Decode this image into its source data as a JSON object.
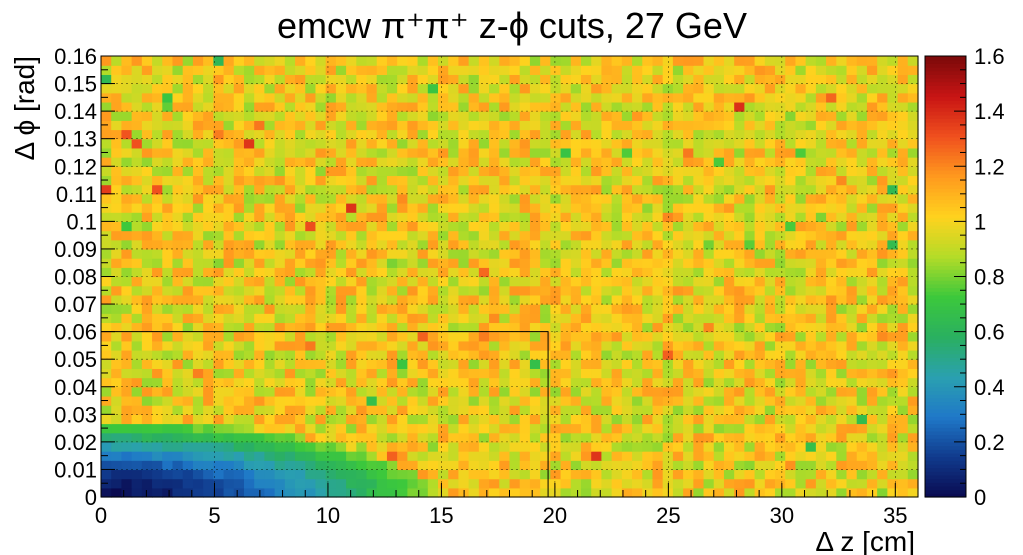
{
  "chart_data": {
    "type": "heatmap",
    "title": "emcw π⁺π⁺  z-ϕ cuts, 27 GeV",
    "xlabel": "Δ z [cm]",
    "ylabel": "Δ ϕ [rad]",
    "xlim": [
      0,
      36
    ],
    "ylim": [
      0,
      0.16
    ],
    "x_ticks": [
      0,
      5,
      10,
      15,
      20,
      25,
      30,
      35
    ],
    "y_ticks": [
      0,
      0.01,
      0.02,
      0.03,
      0.04,
      0.05,
      0.06,
      0.07,
      0.08,
      0.09,
      0.1,
      0.11,
      0.12,
      0.13,
      0.14,
      0.15,
      0.16
    ],
    "z_range": [
      0,
      1.6
    ],
    "z_ticks": [
      0,
      0.2,
      0.4,
      0.6,
      0.8,
      1,
      1.2,
      1.4,
      1.6
    ],
    "grid": true,
    "colorscale": [
      "#0a0a50",
      "#103a8c",
      "#1f78c8",
      "#2aa0b0",
      "#2ab060",
      "#3cc83c",
      "#b4dc28",
      "#ffd21e",
      "#ff9a1e",
      "#f0501e",
      "#c81414",
      "#7a0a0a"
    ],
    "cut_region": {
      "dz_max": 19.7,
      "dphi_max": 0.06
    },
    "bins": {
      "nx": 80,
      "ny": 48
    },
    "pattern": {
      "description": "ratio near 1 with noise everywhere except a suppressed dip near origin",
      "baseline": 1.0,
      "dip_radius_dz": 14.5,
      "dip_radius_dphi": 0.028,
      "dip_min": 0.0
    }
  }
}
